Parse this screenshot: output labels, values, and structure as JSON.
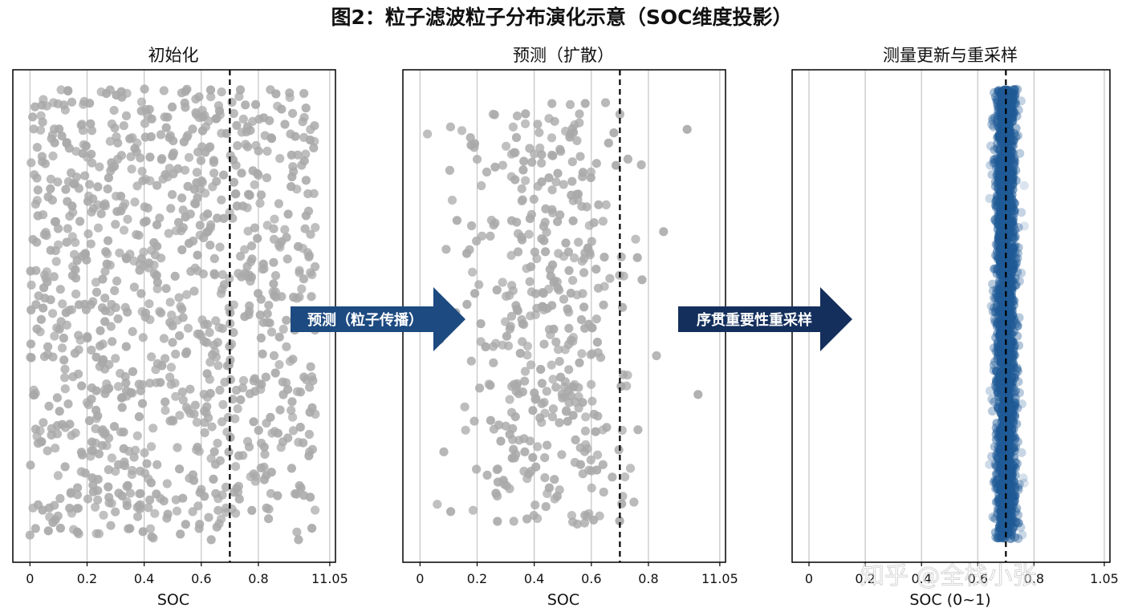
{
  "chart_data": {
    "title": "图2：粒子滤波粒子分布演化示意（SOC维度投影）",
    "panels": [
      {
        "title": "初始化",
        "type": "scatter",
        "xlabel": "SOC",
        "xticks": [
          "0",
          "0.2",
          "0.4",
          "0.6",
          "0.8",
          "11.05"
        ],
        "xlim": [
          -0.06,
          1.07
        ],
        "true_value": 0.7,
        "particle_count": 1000,
        "distribution": "uniform",
        "x_range": [
          0.0,
          1.0
        ],
        "marker_color": "#a9a9a9",
        "grid": "vertical"
      },
      {
        "title": "预测（扩散）",
        "type": "scatter",
        "xlabel": "SOC",
        "xticks": [
          "0",
          "0.2",
          "0.4",
          "0.6",
          "0.8",
          "11.05"
        ],
        "xlim": [
          -0.06,
          1.07
        ],
        "true_value": 0.7,
        "particle_count": 420,
        "distribution": "normal",
        "mean": 0.45,
        "std": 0.16,
        "marker_color": "#a9a9a9",
        "grid": "vertical"
      },
      {
        "title": "测量更新与重采样",
        "type": "scatter",
        "xlabel": "SOC (0~1)",
        "xticks": [
          "0",
          "0.2",
          "0.4",
          "0.6",
          "0.8",
          "1.05"
        ],
        "xlim": [
          -0.06,
          1.07
        ],
        "true_value": 0.7,
        "particle_count": 1600,
        "distribution": "normal",
        "mean": 0.7,
        "std": 0.02,
        "marker_color": "#1f5a96",
        "grid": "vertical"
      }
    ],
    "arrows": [
      {
        "label": "预测（粒子传播）",
        "color": "#1d4a80"
      },
      {
        "label": "序贯重要性重采样",
        "color": "#142f5c"
      }
    ]
  },
  "watermark": "知乎 @全栈小张"
}
